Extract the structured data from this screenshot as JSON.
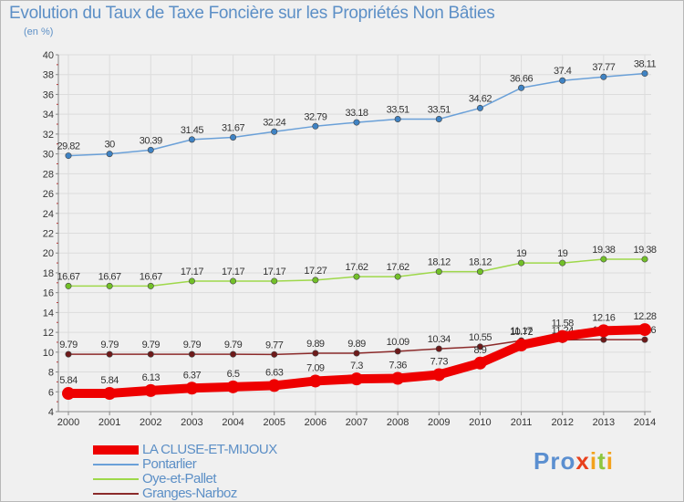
{
  "page": {
    "title": "Evolution du Taux de Taxe Foncière sur les Propriétés Non Bâties",
    "unit": "(en %)"
  },
  "logo": {
    "text": "Proxiti",
    "letters": [
      {
        "char": "P",
        "color": "#5b8fd0"
      },
      {
        "char": "r",
        "color": "#5b8fd0"
      },
      {
        "char": "o",
        "color": "#5b8fd0"
      },
      {
        "char": "x",
        "color": "#e8401c"
      },
      {
        "char": "i",
        "color": "#f3a21d"
      },
      {
        "char": "t",
        "color": "#8dc63f"
      },
      {
        "char": "i",
        "color": "#f3a21d"
      }
    ]
  },
  "chart_data": {
    "type": "line",
    "title": "Evolution du Taux de Taxe Foncière sur les Propriétés Non Bâties",
    "ylabel": "(en %)",
    "xlabel": "",
    "x": [
      2000,
      2001,
      2002,
      2003,
      2004,
      2005,
      2006,
      2007,
      2008,
      2009,
      2010,
      2011,
      2012,
      2013,
      2014
    ],
    "ylim": [
      4,
      40
    ],
    "yticks": [
      4,
      6,
      8,
      10,
      12,
      14,
      16,
      18,
      20,
      22,
      24,
      26,
      28,
      30,
      32,
      34,
      36,
      38,
      40
    ],
    "grid": true,
    "series": [
      {
        "name": "Pontarlier",
        "color": "#6aa0d8",
        "marker": "#3f83c4",
        "values": [
          29.82,
          30,
          30.39,
          31.45,
          31.67,
          32.24,
          32.79,
          33.18,
          33.51,
          33.51,
          34.62,
          36.66,
          37.4,
          37.77,
          38.11
        ],
        "labels": [
          "29.82",
          "30",
          "30.39",
          "31.45",
          "31.67",
          "32.24",
          "32.79",
          "33.18",
          "33.51",
          "33.51",
          "34.62",
          "36.66",
          "37.4",
          "37.77",
          "38.11"
        ]
      },
      {
        "name": "Oye-et-Pallet",
        "color": "#9ed84a",
        "marker": "#72c028",
        "values": [
          16.67,
          16.67,
          16.67,
          17.17,
          17.17,
          17.17,
          17.27,
          17.62,
          17.62,
          18.12,
          18.12,
          19,
          19,
          19.38,
          19.38
        ],
        "labels": [
          "16.67",
          "16.67",
          "16.67",
          "17.17",
          "17.17",
          "17.17",
          "17.27",
          "17.62",
          "17.62",
          "18.12",
          "18.12",
          "19",
          "19",
          "19.38",
          "19.38"
        ]
      },
      {
        "name": "Granges-Narboz",
        "color": "#8b2a2a",
        "marker": "#6e1a1a",
        "values": [
          9.79,
          9.79,
          9.79,
          9.79,
          9.79,
          9.77,
          9.89,
          9.89,
          10.09,
          10.34,
          10.55,
          11.17,
          11.24,
          11.26,
          11.26
        ],
        "labels": [
          "9.79",
          "9.79",
          "9.79",
          "9.79",
          "9.79",
          "9.77",
          "9.89",
          "9.89",
          "10.09",
          "10.34",
          "10.55",
          "11.17",
          "11.24",
          "11.26",
          "11.26"
        ]
      },
      {
        "name": "LA CLUSE-ET-MIJOUX",
        "color": "#ee0000",
        "marker": "#ee0000",
        "values": [
          5.84,
          5.84,
          6.13,
          6.37,
          6.5,
          6.63,
          7.09,
          7.3,
          7.36,
          7.73,
          8.9,
          10.72,
          11.58,
          12.16,
          12.28
        ],
        "labels": [
          "5.84",
          "5.84",
          "6.13",
          "6.37",
          "6.5",
          "6.63",
          "7.09",
          "7.3",
          "7.36",
          "7.73",
          "8.9",
          "10.72",
          "11.58",
          "12.16",
          "12.28"
        ]
      }
    ],
    "legend": {
      "placement": "bottom-left",
      "entries": [
        "LA CLUSE-ET-MIJOUX",
        "Pontarlier",
        "Oye-et-Pallet",
        "Granges-Narboz"
      ]
    }
  }
}
